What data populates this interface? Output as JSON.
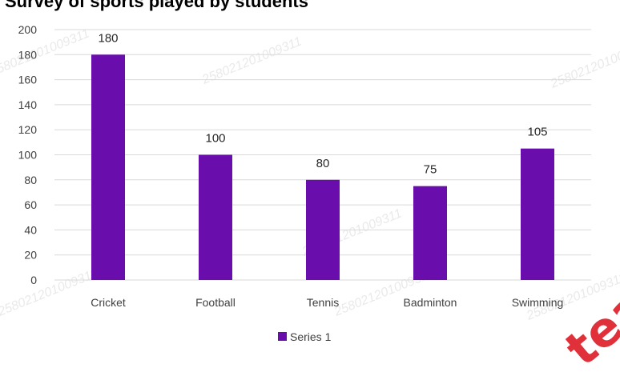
{
  "page": {
    "title": "Survey of sports played by students"
  },
  "watermark": {
    "text": "258021201009311",
    "logo_text": "teach"
  },
  "colors": {
    "bar": "#6a0dad",
    "grid": "#d9d9d9",
    "logo": "#e0303a"
  },
  "chart_data": {
    "type": "bar",
    "title": "",
    "xlabel": "",
    "ylabel": "",
    "categories": [
      "Cricket",
      "Football",
      "Tennis",
      "Badminton",
      "Swimming"
    ],
    "series": [
      {
        "name": "Series 1",
        "values": [
          180,
          100,
          80,
          75,
          105
        ]
      }
    ],
    "ylim": [
      0,
      200
    ],
    "yticks": [
      0,
      20,
      40,
      60,
      80,
      100,
      120,
      140,
      160,
      180,
      200
    ],
    "grid": true,
    "data_labels": true,
    "legend_position": "bottom"
  }
}
